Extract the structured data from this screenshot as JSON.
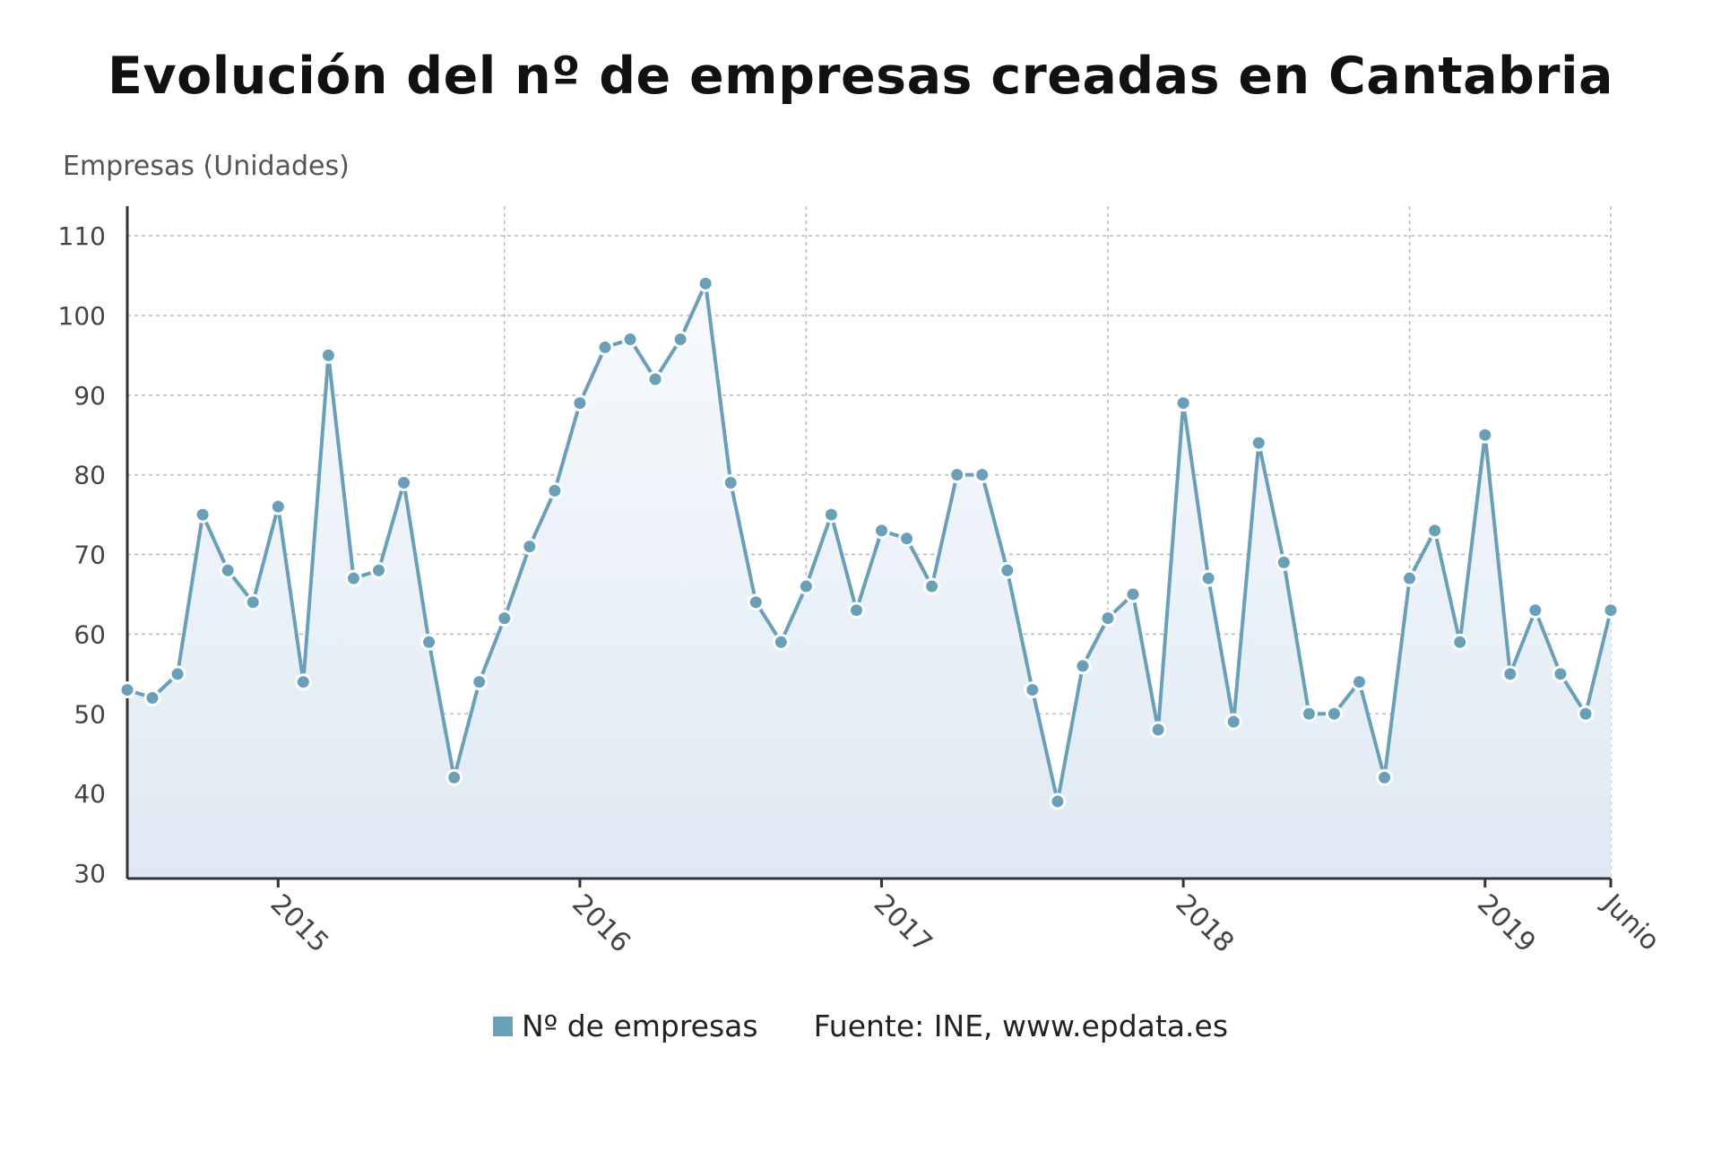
{
  "title": "Evolución del nº de empresas creadas en Cantabria",
  "legend": {
    "series_label": "Nº de empresas"
  },
  "source": "Fuente: INE, www.epdata.es",
  "colors": {
    "series": "#6a9fb8",
    "point_fill": "#6a9fb8",
    "point_stroke": "#ffffff",
    "area_top": "#f7fafd",
    "area_bottom": "#dfe9f3",
    "grid": "#bbbbbb",
    "axis": "#333333"
  },
  "chart_data": {
    "type": "area",
    "ylabel": "Empresas (Unidades)",
    "xlabel": "",
    "ylim": [
      30,
      110
    ],
    "y_ticks": [
      30,
      40,
      50,
      60,
      70,
      80,
      90,
      100,
      110
    ],
    "x_tick_labels": [
      {
        "label": "2015",
        "index": 6
      },
      {
        "label": "2016",
        "index": 18
      },
      {
        "label": "2017",
        "index": 30
      },
      {
        "label": "2018",
        "index": 42
      },
      {
        "label": "2019",
        "index": 54
      },
      {
        "label": "Junio",
        "index": 59
      }
    ],
    "grid": true,
    "legend_position": "bottom",
    "series": [
      {
        "name": "Nº de empresas",
        "values": [
          53,
          52,
          55,
          75,
          68,
          64,
          76,
          54,
          95,
          67,
          68,
          79,
          59,
          42,
          54,
          62,
          71,
          78,
          89,
          96,
          97,
          92,
          97,
          104,
          79,
          64,
          59,
          66,
          75,
          63,
          73,
          72,
          66,
          80,
          80,
          68,
          53,
          39,
          56,
          62,
          65,
          48,
          89,
          67,
          49,
          84,
          69,
          50,
          50,
          54,
          42,
          67,
          73,
          59,
          85,
          55,
          63,
          55,
          50,
          63
        ]
      }
    ]
  }
}
